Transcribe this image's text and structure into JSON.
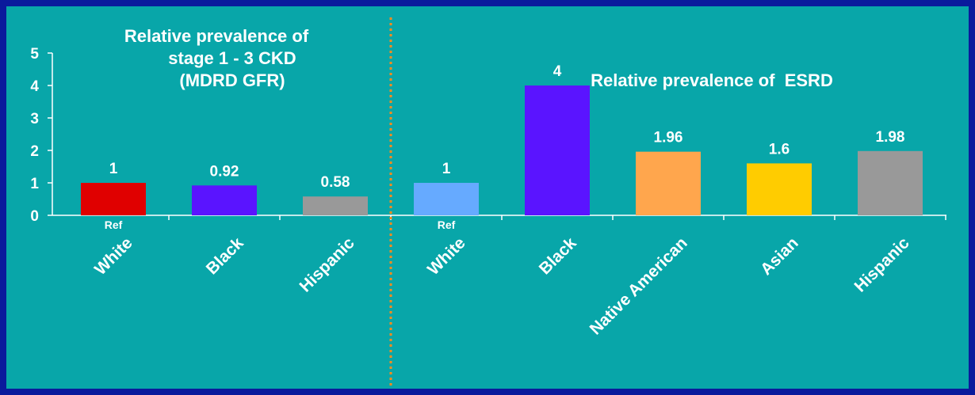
{
  "chart_data": {
    "type": "bar",
    "ylim": [
      0,
      5
    ],
    "yticks": [
      "0",
      "1",
      "2",
      "3",
      "4",
      "5"
    ],
    "panels": [
      {
        "title_lines": [
          "Relative prevalence of",
          "stage 1 - 3 CKD",
          "(MDRD GFR)"
        ],
        "categories": [
          "White",
          "Black",
          "Hispanic"
        ],
        "values": [
          1,
          0.92,
          0.58
        ],
        "data_labels": [
          "1",
          "0.92",
          "0.58"
        ],
        "sub_labels": [
          "Ref",
          "",
          ""
        ],
        "colors": [
          "#e00000",
          "#5a14ff",
          "#999999"
        ]
      },
      {
        "title_lines": [
          "Relative prevalence of  ESRD"
        ],
        "categories": [
          "White",
          "Black",
          "Native American",
          "Asian",
          "Hispanic"
        ],
        "values": [
          1,
          4,
          1.96,
          1.6,
          1.98
        ],
        "data_labels": [
          "1",
          "4",
          "1.96",
          "1.6",
          "1.98"
        ],
        "sub_labels": [
          "Ref",
          "",
          "",
          "",
          ""
        ],
        "colors": [
          "#66aaff",
          "#5a14ff",
          "#ffa64d",
          "#ffcc00",
          "#999999"
        ]
      }
    ],
    "divider_color": "#ff8c1a",
    "grid": false
  }
}
